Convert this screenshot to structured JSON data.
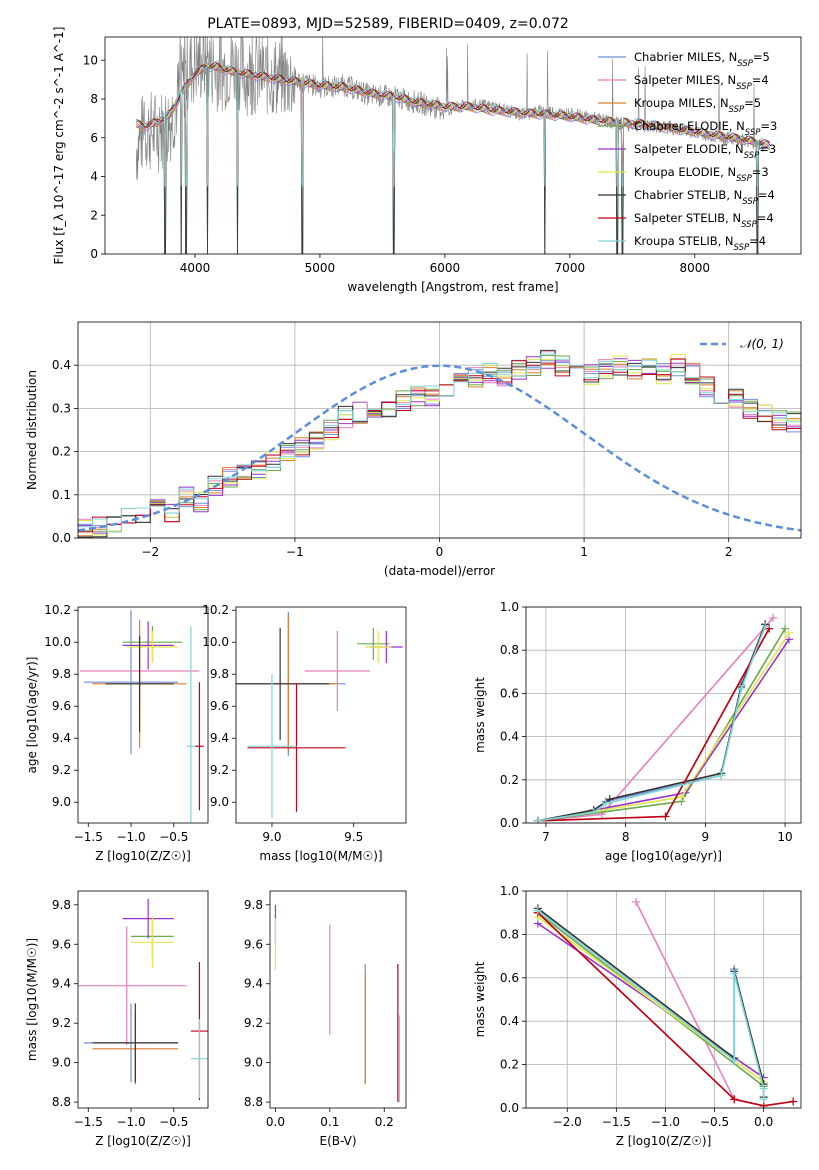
{
  "chart_data": [
    {
      "id": "spectrum",
      "type": "line",
      "title": "PLATE=0893, MJD=52589, FIBERID=0409, z=0.072",
      "xlabel": "wavelength [Angstrom, rest frame]",
      "ylabel": "Flux [f_λ 10^-17 erg cm^-2 s^-1 A^-1]",
      "xlim": [
        3280,
        8850
      ],
      "ylim": [
        0,
        11.2
      ],
      "xticks": [
        4000,
        5000,
        6000,
        7000,
        8000
      ],
      "yticks": [
        0,
        2,
        4,
        6,
        8,
        10
      ],
      "grid": false,
      "legend_position": "top-right",
      "legend": [
        {
          "name": "Chabrier MILES, N_SSP=5",
          "color": "#6f8fd8"
        },
        {
          "name": "Salpeter MILES, N_SSP=4",
          "color": "#e680bd"
        },
        {
          "name": "Kroupa MILES, N_SSP=5",
          "color": "#d97f2e"
        },
        {
          "name": "Chabrier ELODIE, N_SSP=3",
          "color": "#6aa84f"
        },
        {
          "name": "Salpeter ELODIE, N_SSP=3",
          "color": "#9933cc"
        },
        {
          "name": "Kroupa ELODIE, N_SSP=3",
          "color": "#dfe84b"
        },
        {
          "name": "Chabrier STELIB, N_SSP=4",
          "color": "#333333"
        },
        {
          "name": "Salpeter STELIB, N_SSP=4",
          "color": "#c0001a"
        },
        {
          "name": "Kroupa STELIB, N_SSP=4",
          "color": "#7fd6d6"
        }
      ],
      "data_color": "#808080",
      "data_x": [
        3530,
        3600,
        3700,
        3800,
        3900,
        3950,
        4000,
        4100,
        4200,
        4300,
        4400,
        4500,
        4600,
        4800,
        5000,
        5200,
        5400,
        5600,
        5800,
        6000,
        6200,
        6400,
        6600,
        6800,
        7000,
        7200,
        7400,
        7600,
        7800,
        8000,
        8200,
        8400,
        8500,
        8600,
        8850
      ],
      "data_y": [
        5.5,
        6.4,
        6.3,
        6.8,
        8.8,
        9.6,
        9.8,
        10.0,
        9.4,
        9.8,
        9.3,
        9.3,
        9.2,
        9.0,
        8.6,
        8.7,
        8.2,
        8.1,
        7.8,
        7.4,
        7.7,
        7.6,
        7.2,
        7.4,
        7.2,
        7.0,
        6.7,
        6.6,
        6.5,
        6.3,
        6.0,
        5.9,
        5.7,
        5.3,
        5.5
      ],
      "model_x": [
        3530,
        3600,
        3700,
        3800,
        3900,
        4000,
        4100,
        4200,
        4300,
        4400,
        4600,
        4800,
        5000,
        5200,
        5400,
        5600,
        5800,
        6000,
        6200,
        6400,
        6600,
        6800,
        7000,
        7200,
        7400,
        7600,
        7800,
        8000,
        8200,
        8400,
        8600
      ],
      "model_y": [
        6.7,
        6.6,
        6.8,
        7.2,
        8.4,
        9.3,
        9.7,
        9.6,
        9.4,
        9.3,
        9.1,
        8.9,
        8.7,
        8.6,
        8.3,
        8.1,
        7.8,
        7.6,
        7.6,
        7.4,
        7.3,
        7.2,
        7.1,
        6.9,
        6.8,
        6.7,
        6.5,
        6.3,
        6.1,
        5.9,
        5.6
      ],
      "absorption_lines": [
        3760,
        3890,
        3930,
        4100,
        4340,
        4860,
        5590,
        6800,
        7380,
        7420,
        8500
      ]
    },
    {
      "id": "residuals",
      "type": "histogram",
      "xlabel": "(data-model)/error",
      "ylabel": "Normed distribution",
      "xlim": [
        -2.5,
        2.5
      ],
      "ylim": [
        0,
        0.5
      ],
      "xticks": [
        -2,
        -1,
        0,
        1,
        2
      ],
      "yticks": [
        0.0,
        0.1,
        0.2,
        0.3,
        0.4
      ],
      "grid": true,
      "legend_position": "top-right",
      "legend": [
        {
          "name": "𝒩(0, 1)",
          "color": "#5b8fd6",
          "style": "dashed"
        }
      ],
      "bin_edges_start": -2.5,
      "bin_width": 0.1,
      "hist_values": [
        0.02,
        0.025,
        0.03,
        0.05,
        0.055,
        0.07,
        0.06,
        0.095,
        0.085,
        0.12,
        0.14,
        0.15,
        0.16,
        0.18,
        0.2,
        0.21,
        0.23,
        0.25,
        0.28,
        0.29,
        0.3,
        0.3,
        0.32,
        0.33,
        0.33,
        0.35,
        0.36,
        0.37,
        0.38,
        0.37,
        0.39,
        0.4,
        0.41,
        0.4,
        0.39,
        0.38,
        0.39,
        0.4,
        0.39,
        0.39,
        0.38,
        0.4,
        0.38,
        0.35,
        0.32,
        0.32,
        0.3,
        0.29,
        0.27,
        0.27,
        0.25,
        0.25,
        0.24,
        0.22,
        0.21,
        0.2,
        0.18,
        0.15,
        0.14,
        0.13,
        0.12,
        0.1,
        0.085,
        0.09,
        0.08,
        0.08,
        0.06,
        0.06,
        0.05,
        0.045,
        0.04,
        0.035,
        0.03,
        0.03,
        0.025
      ]
    },
    {
      "id": "age-vs-Z",
      "type": "errorbar",
      "xlabel": "Z [log10(Z/Z☉)]",
      "ylabel": "age  [log10(age/yr)]",
      "xlim": [
        -1.62,
        -0.1
      ],
      "ylim": [
        8.87,
        10.22
      ],
      "xticks": [
        -1.5,
        -1.0,
        -0.5
      ],
      "yticks": [
        9.0,
        9.2,
        9.4,
        9.6,
        9.8,
        10.0,
        10.2
      ],
      "points": [
        {
          "x": -1.0,
          "y": 9.75,
          "xerr": 0.55,
          "yerr": 0.45,
          "color": "#6f8fd8"
        },
        {
          "x": -0.9,
          "y": 9.82,
          "xerr": 0.7,
          "yerr": 0.22,
          "color": "#e680bd"
        },
        {
          "x": -0.9,
          "y": 9.74,
          "xerr": 0.55,
          "yerr": 0.4,
          "color": "#d97f2e"
        },
        {
          "x": -0.75,
          "y": 10.0,
          "xerr": 0.35,
          "yerr": 0.1,
          "color": "#6aa84f"
        },
        {
          "x": -0.8,
          "y": 9.98,
          "xerr": 0.3,
          "yerr": 0.15,
          "color": "#9933cc"
        },
        {
          "x": -0.75,
          "y": 9.97,
          "xerr": 0.3,
          "yerr": 0.1,
          "color": "#dfe84b"
        },
        {
          "x": -0.9,
          "y": 9.74,
          "xerr": 0.4,
          "yerr": 0.3,
          "color": "#333333"
        },
        {
          "x": -0.2,
          "y": 9.35,
          "xerr": 0.05,
          "yerr": 0.4,
          "color": "#c0001a"
        },
        {
          "x": -0.3,
          "y": 9.35,
          "xerr": 0.05,
          "yerr": 0.75,
          "color": "#7fd6d6"
        }
      ]
    },
    {
      "id": "age-vs-mass",
      "type": "errorbar",
      "xlabel": "mass [log10(M/M☉)]",
      "ylabel": "",
      "xlim": [
        8.78,
        9.82
      ],
      "ylim": [
        8.87,
        10.22
      ],
      "xticks": [
        9.0,
        9.5
      ],
      "yticks": [
        9.0,
        9.2,
        9.4,
        9.6,
        9.8,
        10.0,
        10.2
      ],
      "points": [
        {
          "x": 9.1,
          "y": 9.74,
          "xerr": 0.35,
          "yerr": 0.45,
          "color": "#6f8fd8"
        },
        {
          "x": 9.4,
          "y": 9.82,
          "xerr": 0.2,
          "yerr": 0.25,
          "color": "#e680bd"
        },
        {
          "x": 9.1,
          "y": 9.74,
          "xerr": 0.3,
          "yerr": 0.42,
          "color": "#d97f2e"
        },
        {
          "x": 9.62,
          "y": 9.99,
          "xerr": 0.1,
          "yerr": 0.1,
          "color": "#6aa84f"
        },
        {
          "x": 9.7,
          "y": 9.97,
          "xerr": 0.1,
          "yerr": 0.1,
          "color": "#9933cc"
        },
        {
          "x": 9.65,
          "y": 9.97,
          "xerr": 0.08,
          "yerr": 0.1,
          "color": "#dfe84b"
        },
        {
          "x": 9.05,
          "y": 9.74,
          "xerr": 0.3,
          "yerr": 0.35,
          "color": "#333333"
        },
        {
          "x": 9.15,
          "y": 9.34,
          "xerr": 0.3,
          "yerr": 0.4,
          "color": "#c0001a"
        },
        {
          "x": 9.0,
          "y": 9.35,
          "xerr": 0.15,
          "yerr": 0.45,
          "color": "#7fd6d6"
        }
      ]
    },
    {
      "id": "cumulative-mass-vs-age",
      "type": "line",
      "xlabel": "age  [log10(age/yr)]",
      "ylabel": "mass weight",
      "xlim": [
        6.75,
        10.2
      ],
      "ylim": [
        0,
        1.0
      ],
      "xticks": [
        7,
        8,
        9,
        10
      ],
      "yticks": [
        0.0,
        0.2,
        0.4,
        0.6,
        0.8,
        1.0
      ],
      "grid": true,
      "series": [
        {
          "color": "#6f8fd8",
          "x": [
            6.9,
            7.6,
            7.75,
            9.2,
            9.45,
            9.75
          ],
          "y": [
            0.01,
            0.06,
            0.1,
            0.22,
            0.64,
            0.92
          ]
        },
        {
          "color": "#e680bd",
          "x": [
            6.9,
            7.7,
            9.85
          ],
          "y": [
            0.01,
            0.04,
            0.95
          ]
        },
        {
          "color": "#d97f2e",
          "x": [
            6.9,
            8.5,
            9.8
          ],
          "y": [
            0.01,
            0.03,
            0.9
          ]
        },
        {
          "color": "#6aa84f",
          "x": [
            6.9,
            8.7,
            10.0
          ],
          "y": [
            0.01,
            0.1,
            0.9
          ]
        },
        {
          "color": "#9933cc",
          "x": [
            6.9,
            8.75,
            10.05
          ],
          "y": [
            0.01,
            0.14,
            0.85
          ]
        },
        {
          "color": "#dfe84b",
          "x": [
            6.9,
            8.7,
            10.05
          ],
          "y": [
            0.01,
            0.12,
            0.88
          ]
        },
        {
          "color": "#333333",
          "x": [
            6.9,
            7.6,
            7.8,
            9.2,
            9.45,
            9.75
          ],
          "y": [
            0.01,
            0.06,
            0.11,
            0.23,
            0.63,
            0.92
          ]
        },
        {
          "color": "#c0001a",
          "x": [
            6.9,
            8.5,
            9.8
          ],
          "y": [
            0.01,
            0.03,
            0.9
          ]
        },
        {
          "color": "#7fd6d6",
          "x": [
            6.9,
            7.6,
            7.75,
            9.2,
            9.45,
            9.75
          ],
          "y": [
            0.01,
            0.05,
            0.09,
            0.22,
            0.62,
            0.91
          ]
        }
      ]
    },
    {
      "id": "mass-vs-Z",
      "type": "errorbar",
      "xlabel": "Z [log10(Z/Z☉)]",
      "ylabel": "mass [log10(M/M☉)]",
      "xlim": [
        -1.62,
        -0.1
      ],
      "ylim": [
        8.77,
        9.87
      ],
      "xticks": [
        -1.5,
        -1.0,
        -0.5
      ],
      "yticks": [
        8.8,
        9.0,
        9.2,
        9.4,
        9.6,
        9.8
      ],
      "points": [
        {
          "x": -1.0,
          "y": 9.1,
          "xerr": 0.55,
          "yerr": 0.2,
          "color": "#6f8fd8"
        },
        {
          "x": -1.05,
          "y": 9.39,
          "xerr": 0.7,
          "yerr": 0.3,
          "color": "#e680bd"
        },
        {
          "x": -0.95,
          "y": 9.07,
          "xerr": 0.5,
          "yerr": 0.18,
          "color": "#d97f2e"
        },
        {
          "x": -0.75,
          "y": 9.64,
          "xerr": 0.25,
          "yerr": 0.1,
          "color": "#6aa84f"
        },
        {
          "x": -0.8,
          "y": 9.73,
          "xerr": 0.3,
          "yerr": 0.1,
          "color": "#9933cc"
        },
        {
          "x": -0.75,
          "y": 9.61,
          "xerr": 0.25,
          "yerr": 0.13,
          "color": "#dfe84b"
        },
        {
          "x": -0.95,
          "y": 9.1,
          "xerr": 0.5,
          "yerr": 0.2,
          "color": "#333333"
        },
        {
          "x": -0.2,
          "y": 9.16,
          "xerr": 0.1,
          "yerr": 0.35,
          "color": "#c0001a"
        },
        {
          "x": -0.2,
          "y": 9.02,
          "xerr": 0.1,
          "yerr": 0.2,
          "color": "#7fd6d6"
        }
      ]
    },
    {
      "id": "mass-vs-ebv",
      "type": "errorbar",
      "xlabel": "E(B-V)",
      "ylabel": "",
      "xlim": [
        -0.01,
        0.24
      ],
      "ylim": [
        8.77,
        9.87
      ],
      "xticks": [
        0.0,
        0.1,
        0.2
      ],
      "yticks": [
        8.8,
        9.0,
        9.2,
        9.4,
        9.6,
        9.8
      ],
      "points": [
        {
          "x": 0.0,
          "y": 9.7,
          "yerr": 0.1,
          "color": "#9933cc"
        },
        {
          "x": 0.0,
          "y": 9.6,
          "yerr": 0.13,
          "color": "#dfe84b"
        },
        {
          "x": 0.1,
          "y": 9.42,
          "yerr": 0.28,
          "color": "#e680bd"
        },
        {
          "x": 0.165,
          "y": 9.2,
          "yerr": 0.3,
          "color": "#6f8fd8"
        },
        {
          "x": 0.165,
          "y": 9.17,
          "yerr": 0.28,
          "color": "#d97f2e"
        },
        {
          "x": 0.225,
          "y": 9.15,
          "yerr": 0.35,
          "color": "#c0001a"
        },
        {
          "x": 0.228,
          "y": 9.02,
          "yerr": 0.22,
          "color": "#7fd6d6"
        }
      ]
    },
    {
      "id": "cumulative-mass-vs-Z",
      "type": "line",
      "xlabel": "Z [log10(Z/Z☉)]",
      "ylabel": "mass weight",
      "xlim": [
        -2.42,
        0.38
      ],
      "ylim": [
        0,
        1.0
      ],
      "xticks": [
        -2.0,
        -1.5,
        -1.0,
        -0.5,
        0.0
      ],
      "yticks": [
        0.0,
        0.2,
        0.4,
        0.6,
        0.8,
        1.0
      ],
      "grid": true,
      "series": [
        {
          "color": "#6f8fd8",
          "x": [
            -2.3,
            -0.3,
            -0.3,
            0.0,
            0.0
          ],
          "y": [
            0.91,
            0.22,
            0.64,
            0.1,
            0.05
          ]
        },
        {
          "color": "#e680bd",
          "x": [
            -1.3,
            -0.3,
            0.0
          ],
          "y": [
            0.95,
            0.04,
            0.01
          ]
        },
        {
          "color": "#d97f2e",
          "x": [
            -2.3,
            -0.3,
            0.0,
            0.3
          ],
          "y": [
            0.9,
            0.04,
            0.01,
            0.03
          ]
        },
        {
          "color": "#6aa84f",
          "x": [
            -2.3,
            0.0
          ],
          "y": [
            0.9,
            0.1
          ]
        },
        {
          "color": "#9933cc",
          "x": [
            -2.3,
            0.0
          ],
          "y": [
            0.85,
            0.14
          ]
        },
        {
          "color": "#dfe84b",
          "x": [
            -2.3,
            0.0
          ],
          "y": [
            0.88,
            0.12
          ]
        },
        {
          "color": "#333333",
          "x": [
            -2.3,
            -0.3,
            -0.3,
            0.0,
            0.0
          ],
          "y": [
            0.92,
            0.23,
            0.63,
            0.11,
            0.05
          ]
        },
        {
          "color": "#c0001a",
          "x": [
            -2.3,
            -0.3,
            0.0,
            0.3
          ],
          "y": [
            0.9,
            0.04,
            0.01,
            0.03
          ]
        },
        {
          "color": "#7fd6d6",
          "x": [
            -2.3,
            -0.3,
            -0.3,
            0.0,
            0.0
          ],
          "y": [
            0.91,
            0.22,
            0.62,
            0.09,
            0.04
          ]
        }
      ]
    }
  ]
}
